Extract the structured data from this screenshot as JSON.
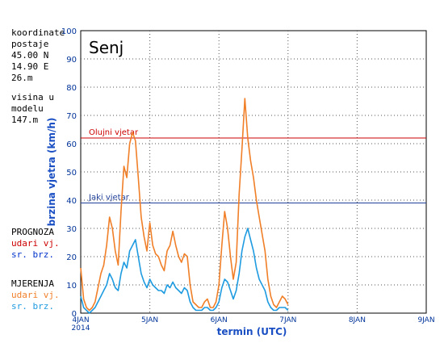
{
  "side_info": {
    "coord_label": "koordinate",
    "station_label": "postaje",
    "lat": "45.00 N",
    "lon": "14.90 E",
    "station_height": "26.m",
    "model_label_1": "visina u",
    "model_label_2": "modelu",
    "model_height": "147.m"
  },
  "legend": {
    "forecast_title": "PROGNOZA",
    "forecast_gust": "udari vj.",
    "forecast_mean": "sr. brz.",
    "measure_title": "MJERENJA",
    "measure_gust": "udari vj.",
    "measure_mean": "sr. brz."
  },
  "colors": {
    "gust_measured": "#f07f28",
    "mean_measured": "#1e9be0",
    "forecast_gust": "#cc0000",
    "forecast_mean": "#0033cc",
    "threshold_storm": "#cc0000",
    "threshold_strong": "#1f3f99",
    "axis_text": "#003399"
  },
  "chart_data": {
    "type": "line",
    "title": "Senj",
    "xlabel": "termin (UTC)",
    "ylabel": "brzina vjetra (km/h)",
    "ylim": [
      0,
      100
    ],
    "yticks": [
      "0",
      "10",
      "20",
      "30",
      "40",
      "50",
      "60",
      "70",
      "80",
      "90",
      "100"
    ],
    "xlim": [
      0,
      120
    ],
    "xticks": [
      {
        "hour": 0,
        "label": "4JAN",
        "sublabel": "2014"
      },
      {
        "hour": 24,
        "label": "5JAN",
        "sublabel": ""
      },
      {
        "hour": 48,
        "label": "6JAN",
        "sublabel": ""
      },
      {
        "hour": 72,
        "label": "7JAN",
        "sublabel": ""
      },
      {
        "hour": 96,
        "label": "8JAN",
        "sublabel": ""
      },
      {
        "hour": 120,
        "label": "9JAN",
        "sublabel": ""
      }
    ],
    "grid": true,
    "thresholds": [
      {
        "name": "Olujni vjetar",
        "value": 62,
        "color": "#cc0000"
      },
      {
        "name": "Jaki vjetar",
        "value": 39,
        "color": "#1f3f99"
      }
    ],
    "series": [
      {
        "name": "udari vj.",
        "color": "#f07f28",
        "x": [
          0,
          1,
          2,
          3,
          4,
          5,
          6,
          7,
          8,
          9,
          10,
          11,
          12,
          13,
          14,
          15,
          16,
          17,
          18,
          19,
          20,
          21,
          22,
          23,
          24,
          25,
          26,
          27,
          28,
          29,
          30,
          31,
          32,
          33,
          34,
          35,
          36,
          37,
          38,
          39,
          40,
          41,
          42,
          43,
          44,
          45,
          46,
          47,
          48,
          49,
          50,
          51,
          52,
          53,
          54,
          55,
          56,
          57,
          58,
          59,
          60,
          61,
          62,
          63,
          64,
          65,
          66,
          67,
          68,
          69,
          70,
          71,
          72
        ],
        "y": [
          16,
          5,
          2,
          1,
          2,
          4,
          9,
          14,
          17,
          24,
          34,
          30,
          22,
          17,
          36,
          52,
          48,
          60,
          64,
          61,
          48,
          34,
          27,
          22,
          32,
          24,
          21,
          20,
          17,
          15,
          22,
          24,
          29,
          24,
          20,
          18,
          21,
          20,
          10,
          4,
          3,
          2,
          2,
          4,
          5,
          2,
          2,
          4,
          10,
          24,
          36,
          30,
          20,
          12,
          18,
          42,
          58,
          76,
          62,
          54,
          48,
          40,
          34,
          28,
          22,
          12,
          6,
          3,
          2,
          4,
          6,
          5,
          3
        ]
      },
      {
        "name": "sr. brz.",
        "color": "#1e9be0",
        "x": [
          0,
          1,
          2,
          3,
          4,
          5,
          6,
          7,
          8,
          9,
          10,
          11,
          12,
          13,
          14,
          15,
          16,
          17,
          18,
          19,
          20,
          21,
          22,
          23,
          24,
          25,
          26,
          27,
          28,
          29,
          30,
          31,
          32,
          33,
          34,
          35,
          36,
          37,
          38,
          39,
          40,
          41,
          42,
          43,
          44,
          45,
          46,
          47,
          48,
          49,
          50,
          51,
          52,
          53,
          54,
          55,
          56,
          57,
          58,
          59,
          60,
          61,
          62,
          63,
          64,
          65,
          66,
          67,
          68,
          69,
          70,
          71,
          72
        ],
        "y": [
          6,
          2,
          1,
          0,
          1,
          2,
          4,
          6,
          8,
          10,
          14,
          12,
          9,
          8,
          14,
          18,
          16,
          22,
          24,
          26,
          20,
          14,
          11,
          9,
          12,
          10,
          9,
          8,
          8,
          7,
          10,
          9,
          11,
          9,
          8,
          7,
          9,
          8,
          4,
          2,
          1,
          1,
          1,
          2,
          2,
          1,
          1,
          2,
          4,
          9,
          12,
          11,
          8,
          5,
          8,
          14,
          22,
          27,
          30,
          26,
          22,
          16,
          12,
          10,
          8,
          4,
          2,
          1,
          1,
          2,
          2,
          2,
          1
        ]
      }
    ]
  }
}
